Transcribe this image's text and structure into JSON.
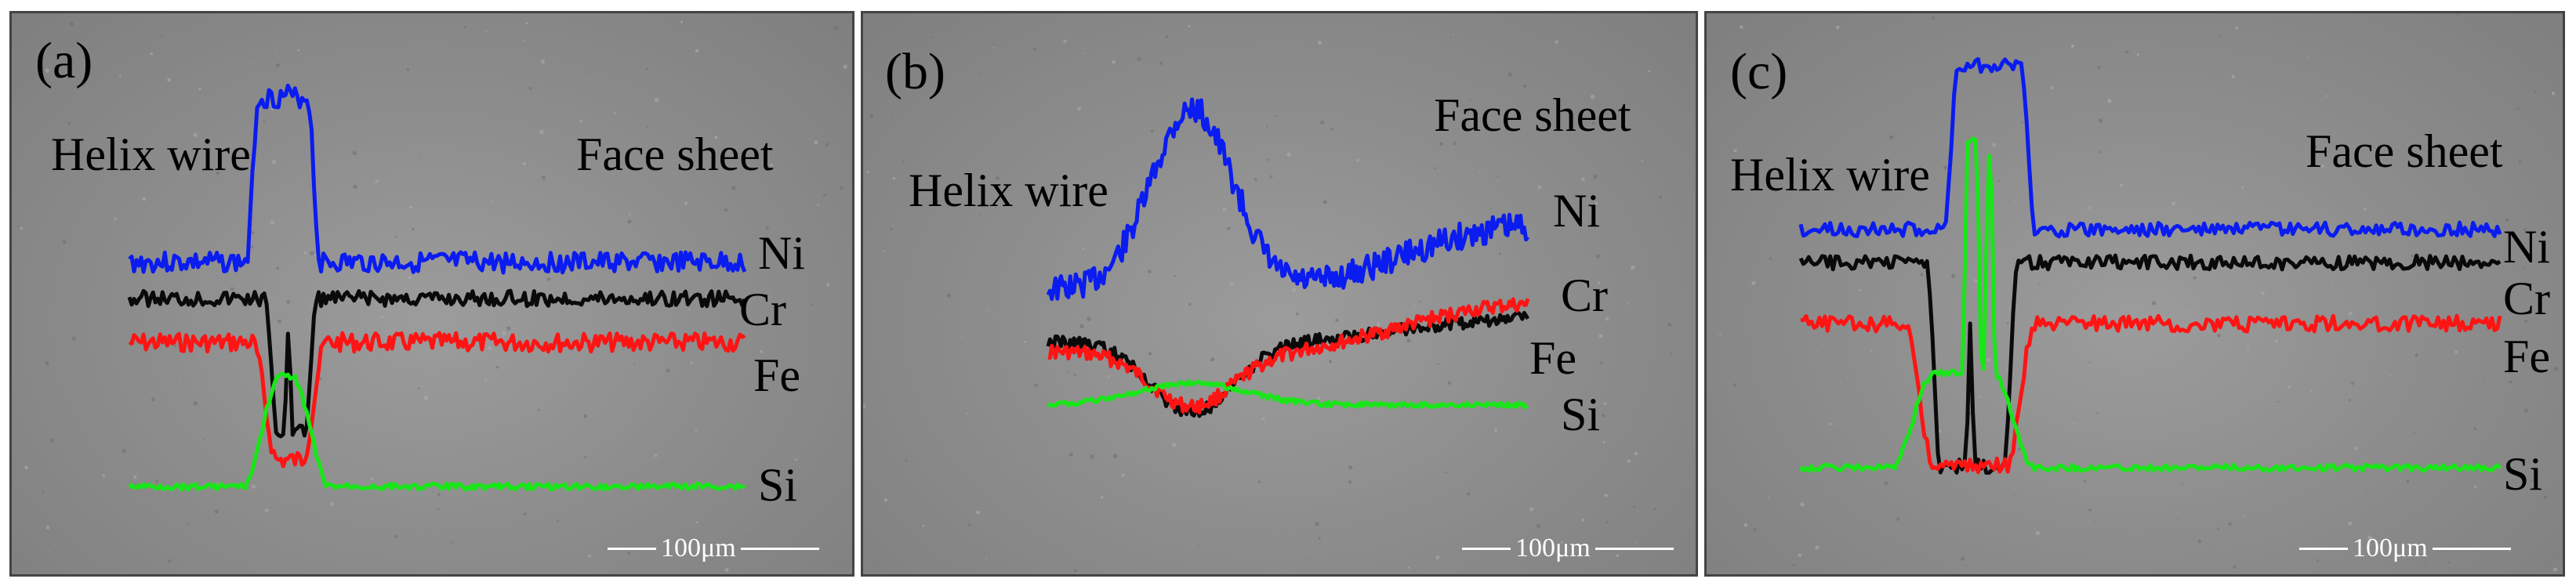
{
  "colors": {
    "Ni": "#0a1cf0",
    "Cr": "#0a0a0a",
    "Fe": "#ff1414",
    "Si": "#19e619"
  },
  "panels": [
    {
      "label": "(a)",
      "left_text": "Helix wire",
      "right_text": "Face sheet",
      "elements": [
        "Ni",
        "Cr",
        "Fe",
        "Si"
      ],
      "scale_bar": "100μm"
    },
    {
      "label": "(b)",
      "left_text": "Helix wire",
      "right_text": "Face sheet",
      "elements": [
        "Ni",
        "Cr",
        "Fe",
        "Si"
      ],
      "scale_bar": "100μm"
    },
    {
      "label": "(c)",
      "left_text": "Helix wire",
      "right_text": "Face sheet",
      "elements": [
        "Ni",
        "Cr",
        "Fe",
        "Si"
      ],
      "scale_bar": "100μm"
    }
  ]
}
